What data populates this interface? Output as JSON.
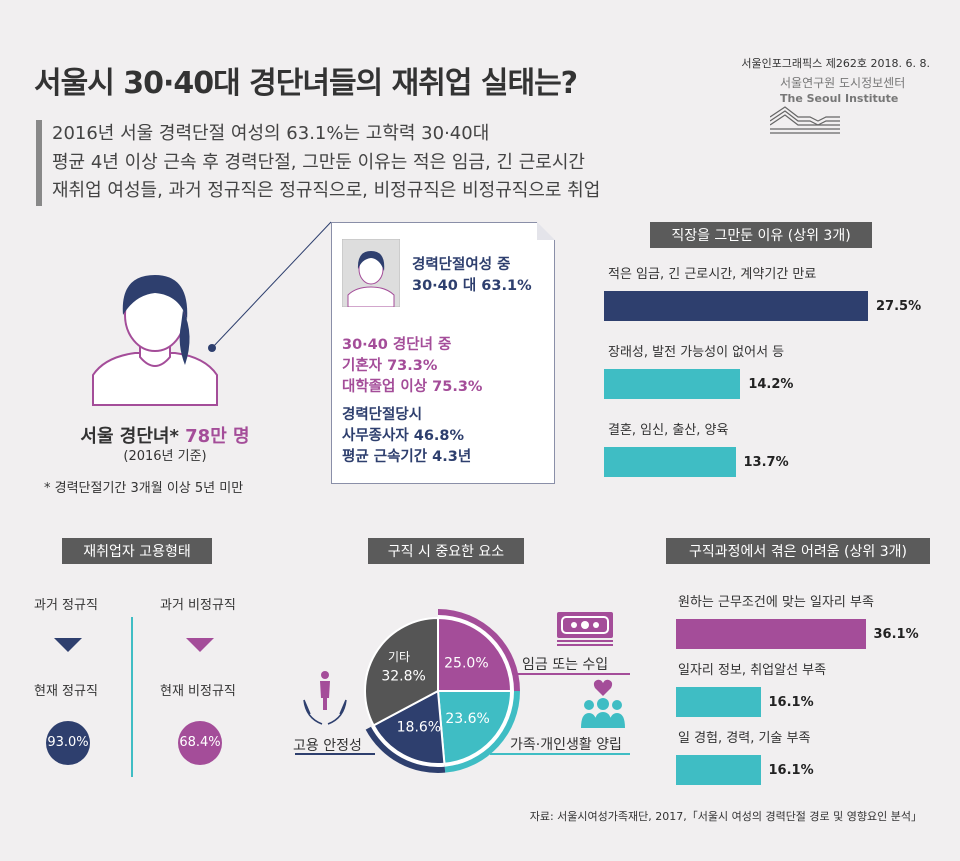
{
  "header": {
    "title": "서울시 30·40대 경단녀들의 재취업 실태는?",
    "issue": "서울인포그래픽스 제262호 2018. 6. 8.",
    "org_kr": "서울연구원 도시정보센터",
    "org_en": "The Seoul Institute"
  },
  "summary": [
    "2016년 서울 경력단절 여성의 63.1%는 고학력 30·40대",
    "평균 4년 이상 근속 후 경력단절, 그만둔 이유는 적은 임금, 긴 근로시간",
    "재취업 여성들, 과거 정규직은 정규직으로, 비정규직은 비정규직으로 취업"
  ],
  "overview": {
    "label": "서울 경단녀*",
    "count": "78만 명",
    "basis": "(2016년 기준)",
    "footnote": "* 경력단절기간 3개월 이상 5년 미만"
  },
  "card": {
    "l1": "경력단절여성 중",
    "l2": "30·40 대 63.1%",
    "m1": "30·40 경단녀 중",
    "m2": "기혼자 73.3%",
    "m3": "대학졸업 이상 75.3%",
    "b1": "경력단절당시",
    "b2": "사무종사자 46.8%",
    "b3": "평균 근속기간 4.3년"
  },
  "quit_reasons": {
    "title": "직장을 그만둔 이유 (상위 3개)",
    "items": [
      {
        "label": "적은 임금, 긴 근로시간, 계약기간 만료",
        "value": 27.5,
        "text": "27.5%",
        "color": "#2e3f6e"
      },
      {
        "label": "장래성, 발전 가능성이 없어서 등",
        "value": 14.2,
        "text": "14.2%",
        "color": "#3fbdc4"
      },
      {
        "label": "결혼, 임신, 출산, 양육",
        "value": 13.7,
        "text": "13.7%",
        "color": "#3fbdc4"
      }
    ]
  },
  "employment": {
    "title": "재취업자 고용형태",
    "past_regular": "과거 정규직",
    "past_nonregular": "과거 비정규직",
    "now_regular": "현재 정규직",
    "now_nonregular": "현재 비정규직",
    "regular_pct": "93.0%",
    "nonregular_pct": "68.4%"
  },
  "factors": {
    "title": "구직 시 중요한 요소",
    "slices": [
      {
        "label": "임금 또는 수입",
        "value": 25.0,
        "text": "25.0%",
        "color": "#a44d99"
      },
      {
        "label": "가족·개인생활 양립",
        "value": 23.6,
        "text": "23.6%",
        "color": "#3fbdc4"
      },
      {
        "label": "고용 안정성",
        "value": 18.6,
        "text": "18.6%",
        "color": "#2e3f6e"
      },
      {
        "label": "기타",
        "value": 32.8,
        "text": "32.8%",
        "color": "#555555"
      }
    ]
  },
  "difficulties": {
    "title": "구직과정에서 겪은 어려움 (상위 3개)",
    "items": [
      {
        "label": "원하는 근무조건에 맞는 일자리 부족",
        "value": 36.1,
        "text": "36.1%",
        "color": "#a44d99"
      },
      {
        "label": "일자리 정보, 취업알선 부족",
        "value": 16.1,
        "text": "16.1%",
        "color": "#3fbdc4"
      },
      {
        "label": "일 경험, 경력, 기술 부족",
        "value": 16.1,
        "text": "16.1%",
        "color": "#3fbdc4"
      }
    ]
  },
  "source": "자료: 서울시여성가족재단, 2017,「서울시 여성의 경력단절 경로 및 영향요인 분석」"
}
